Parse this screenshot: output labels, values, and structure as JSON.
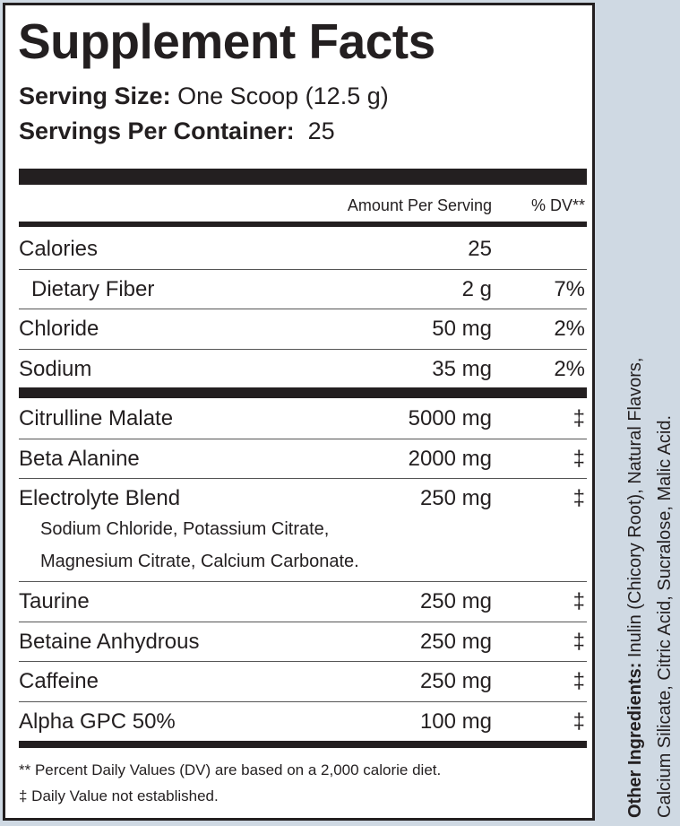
{
  "title": "Supplement Facts",
  "serving_size": {
    "label": "Serving Size:",
    "value": "One Scoop (12.5 g)"
  },
  "servings_per_container": {
    "label": "Servings Per Container:",
    "value": "25"
  },
  "header": {
    "amount": "Amount Per Serving",
    "dv": "% DV**"
  },
  "nutrients": [
    {
      "name": "Calories",
      "amount": "25",
      "dv": ""
    },
    {
      "name": "Dietary Fiber",
      "amount": "2 g",
      "dv": "7%"
    },
    {
      "name": "Chloride",
      "amount": "50 mg",
      "dv": "2%"
    },
    {
      "name": "Sodium",
      "amount": "35 mg",
      "dv": "2%"
    }
  ],
  "ingredients": [
    {
      "name": "Citrulline Malate",
      "amount": "5000 mg",
      "dv": "‡"
    },
    {
      "name": "Beta Alanine",
      "amount": "2000 mg",
      "dv": "‡"
    },
    {
      "name": "Electrolyte Blend",
      "amount": "250 mg",
      "dv": "‡",
      "sub1": "Sodium Chloride, Potassium Citrate,",
      "sub2": "Magnesium Citrate, Calcium Carbonate."
    },
    {
      "name": "Taurine",
      "amount": "250 mg",
      "dv": "‡"
    },
    {
      "name": "Betaine Anhydrous",
      "amount": "250 mg",
      "dv": "‡"
    },
    {
      "name": "Caffeine",
      "amount": "250 mg",
      "dv": "‡"
    },
    {
      "name": "Alpha GPC 50%",
      "amount": "100 mg",
      "dv": "‡"
    }
  ],
  "footnotes": [
    "** Percent Daily Values (DV) are based on a 2,000 calorie diet.",
    "‡ Daily Value not established."
  ],
  "other_ingredients": {
    "label": "Other Ingredients:",
    "line1": " Inulin (Chicory Root), Natural Flavors,",
    "line2": "Calcium Silicate, Citric Acid, Sucralose, Malic Acid."
  },
  "colors": {
    "side_panel": "#cfd9e3",
    "ink": "#231f20"
  }
}
